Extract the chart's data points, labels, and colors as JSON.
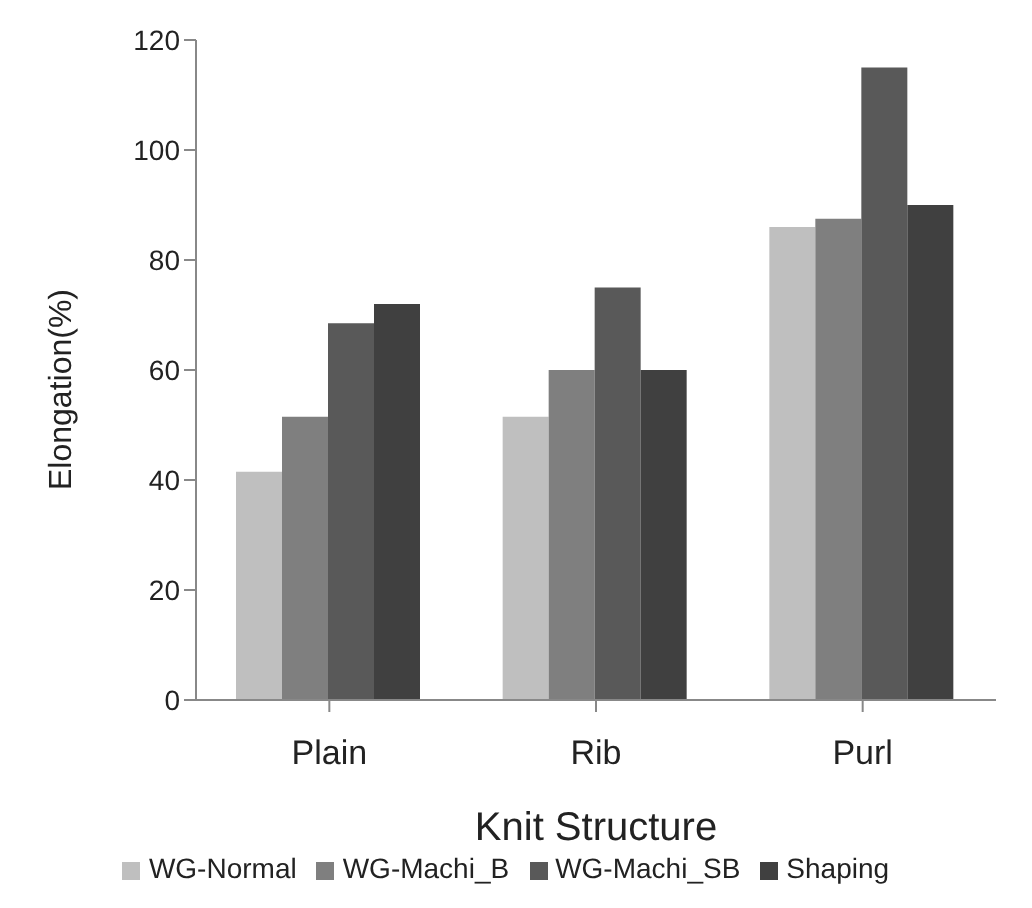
{
  "chart_data": {
    "type": "bar",
    "xlabel": "Knit Structure",
    "ylabel": "Elongation(%)",
    "categories": [
      "Plain",
      "Rib",
      "Purl"
    ],
    "series": [
      {
        "name": "WG-Normal",
        "color": "#bfbfbf",
        "values": [
          41.5,
          51.5,
          86
        ]
      },
      {
        "name": "WG-Machi_B",
        "color": "#7f7f7f",
        "values": [
          51.5,
          60,
          87.5
        ]
      },
      {
        "name": "WG-Machi_SB",
        "color": "#595959",
        "values": [
          68.5,
          75,
          115
        ]
      },
      {
        "name": "Shaping",
        "color": "#404040",
        "values": [
          72,
          60,
          90
        ]
      }
    ],
    "ylim": [
      0,
      120
    ],
    "yticks": [
      0,
      20,
      40,
      60,
      80,
      100,
      120
    ],
    "grid": false,
    "legend": "bottom"
  }
}
